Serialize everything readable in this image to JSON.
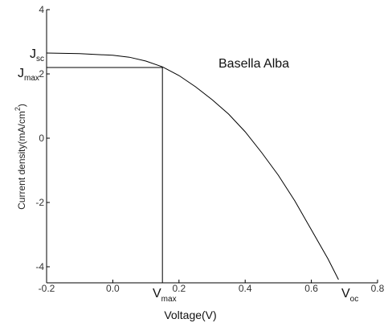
{
  "chart_data": {
    "type": "line",
    "title": "",
    "xlabel": "Voltage(V)",
    "ylabel": "Current density(mA/cm²)",
    "xlim": [
      -0.2,
      0.8
    ],
    "ylim": [
      -4.5,
      4
    ],
    "x_ticks": [
      "-0.2",
      "0.0",
      "0.2",
      "0.4",
      "0.6",
      "0.8"
    ],
    "y_ticks": [
      "4",
      "2",
      "0",
      "-2",
      "-4"
    ],
    "grid": false,
    "series": [
      {
        "name": "Basella Alba",
        "x": [
          -0.2,
          -0.1,
          0.0,
          0.05,
          0.1,
          0.15,
          0.2,
          0.25,
          0.3,
          0.35,
          0.4,
          0.45,
          0.5,
          0.55,
          0.6,
          0.65,
          0.682
        ],
        "y": [
          2.65,
          2.63,
          2.58,
          2.52,
          2.4,
          2.22,
          1.95,
          1.6,
          1.2,
          0.75,
          0.2,
          -0.45,
          -1.15,
          -1.95,
          -2.85,
          -3.75,
          -4.4
        ]
      }
    ],
    "annotations": {
      "legend_text": "Basella Alba",
      "jsc": {
        "main": "J",
        "sub": "sc",
        "y": 2.65
      },
      "jmax": {
        "main": "J",
        "sub": "max",
        "y": 2.2
      },
      "vmax": {
        "main": "V",
        "sub": "max",
        "x": 0.15
      },
      "voc": {
        "main": "V",
        "sub": "oc",
        "x": 0.682
      }
    }
  },
  "ylabel_parts": {
    "main": "Current density(mA/cm",
    "sup": "2",
    "end": ")"
  }
}
